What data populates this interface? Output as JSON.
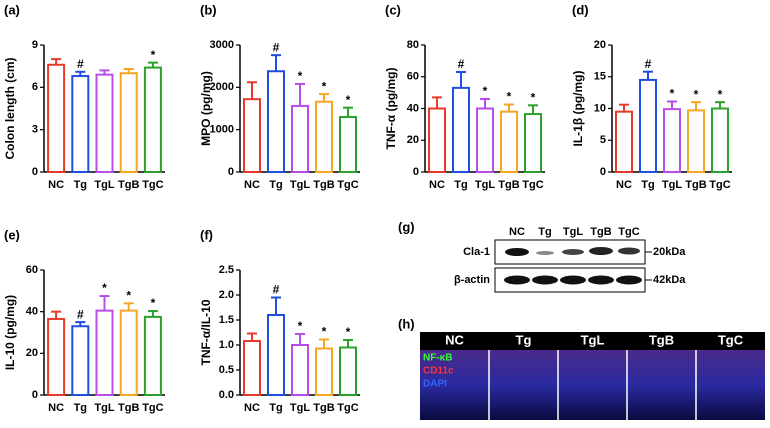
{
  "chart_data": [
    {
      "type": "bar",
      "panel": "(a)",
      "ylabel": "Colon length (cm)",
      "categories": [
        "NC",
        "Tg",
        "TgL",
        "TgB",
        "TgC"
      ],
      "values": [
        7.6,
        6.8,
        6.9,
        7.0,
        7.4
      ],
      "errors": [
        0.4,
        0.3,
        0.3,
        0.3,
        0.35
      ],
      "annotations": [
        null,
        "#",
        null,
        null,
        "*"
      ],
      "colors": [
        "#e8392b",
        "#1f4fe0",
        "#b84dea",
        "#f5a623",
        "#2ca02c"
      ],
      "ylim": [
        0,
        9
      ],
      "yticks": [
        0,
        3,
        6,
        9
      ]
    },
    {
      "type": "bar",
      "panel": "(b)",
      "ylabel": "MPO (pg/mg)",
      "categories": [
        "NC",
        "Tg",
        "TgL",
        "TgB",
        "TgC"
      ],
      "values": [
        1720,
        2380,
        1560,
        1660,
        1300
      ],
      "errors": [
        400,
        380,
        520,
        180,
        220
      ],
      "annotations": [
        null,
        "#",
        "*",
        "*",
        "*"
      ],
      "colors": [
        "#e8392b",
        "#1f4fe0",
        "#b84dea",
        "#f5a623",
        "#2ca02c"
      ],
      "ylim": [
        0,
        3000
      ],
      "yticks": [
        0,
        1000,
        2000,
        3000
      ]
    },
    {
      "type": "bar",
      "panel": "(c)",
      "ylabel": "TNF-α (pg/mg)",
      "categories": [
        "NC",
        "Tg",
        "TgL",
        "TgB",
        "TgC"
      ],
      "values": [
        40,
        53,
        40,
        38,
        36.5
      ],
      "errors": [
        7,
        10,
        6,
        4.5,
        5.5
      ],
      "annotations": [
        null,
        "#",
        "*",
        "*",
        "*"
      ],
      "colors": [
        "#e8392b",
        "#1f4fe0",
        "#b84dea",
        "#f5a623",
        "#2ca02c"
      ],
      "ylim": [
        0,
        80
      ],
      "yticks": [
        0,
        20,
        40,
        60,
        80
      ]
    },
    {
      "type": "bar",
      "panel": "(d)",
      "ylabel": "IL-1β (pg/mg)",
      "categories": [
        "NC",
        "Tg",
        "TgL",
        "TgB",
        "TgC"
      ],
      "values": [
        9.5,
        14.5,
        9.9,
        9.7,
        10
      ],
      "errors": [
        1.1,
        1.3,
        1.2,
        1.3,
        1
      ],
      "annotations": [
        null,
        "#",
        "*",
        "*",
        "*"
      ],
      "colors": [
        "#e8392b",
        "#1f4fe0",
        "#b84dea",
        "#f5a623",
        "#2ca02c"
      ],
      "ylim": [
        0,
        20
      ],
      "yticks": [
        0,
        5,
        10,
        15,
        20
      ]
    },
    {
      "type": "bar",
      "panel": "(e)",
      "ylabel": "IL-10 (pg/mg)",
      "categories": [
        "NC",
        "Tg",
        "TgL",
        "TgB",
        "TgC"
      ],
      "values": [
        36.5,
        33,
        40.5,
        40.5,
        37.5
      ],
      "errors": [
        3.5,
        2,
        7,
        3.5,
        2.8
      ],
      "annotations": [
        null,
        "#",
        "*",
        "*",
        "*"
      ],
      "colors": [
        "#e8392b",
        "#1f4fe0",
        "#b84dea",
        "#f5a623",
        "#2ca02c"
      ],
      "ylim": [
        0,
        60
      ],
      "yticks": [
        0,
        20,
        40,
        60
      ]
    },
    {
      "type": "bar",
      "panel": "(f)",
      "ylabel": "TNF-α/IL-10",
      "categories": [
        "NC",
        "Tg",
        "TgL",
        "TgB",
        "TgC"
      ],
      "values": [
        1.08,
        1.6,
        1.0,
        0.93,
        0.95
      ],
      "errors": [
        0.15,
        0.35,
        0.22,
        0.18,
        0.15
      ],
      "annotations": [
        null,
        "#",
        "*",
        "*",
        "*"
      ],
      "colors": [
        "#e8392b",
        "#1f4fe0",
        "#b84dea",
        "#f5a623",
        "#2ca02c"
      ],
      "ylim": [
        0,
        2.5
      ],
      "yticks": [
        {
          "value": 0,
          "label": "0.0"
        },
        0.5,
        {
          "value": 1,
          "label": "1.0"
        },
        1.5,
        {
          "value": 2,
          "label": "2.0"
        },
        2.5
      ]
    }
  ],
  "blot": {
    "panel": "(g)",
    "lanes": [
      "NC",
      "Tg",
      "TgL",
      "TgB",
      "TgC"
    ],
    "rows": [
      {
        "name": "Cla-1",
        "size": "20kDa"
      },
      {
        "name": "β-actin",
        "size": "42kDa"
      }
    ]
  },
  "image": {
    "panel": "(h)",
    "groups": [
      "NC",
      "Tg",
      "TgL",
      "TgB",
      "TgC"
    ],
    "stains": [
      "NF-κB",
      "CD11c",
      "DAPI"
    ]
  }
}
